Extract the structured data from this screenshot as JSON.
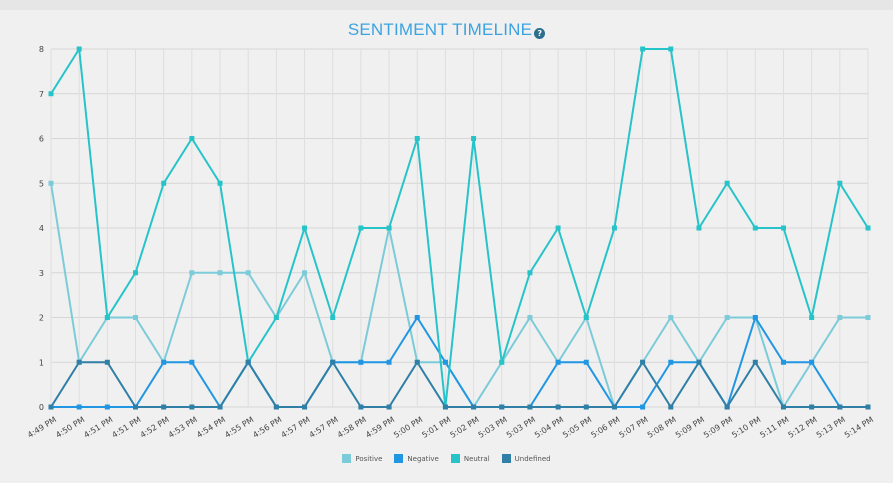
{
  "title": "SENTIMENT TIMELINE",
  "help_icon": "?",
  "chart_data": {
    "type": "line",
    "title": "SENTIMENT TIMELINE",
    "x": [
      "4:49 PM",
      "4:50 PM",
      "4:51 PM",
      "4:51 PM",
      "4:52 PM",
      "4:53 PM",
      "4:54 PM",
      "4:55 PM",
      "4:56 PM",
      "4:57 PM",
      "4:57 PM",
      "4:58 PM",
      "4:59 PM",
      "5:00 PM",
      "5:01 PM",
      "5:02 PM",
      "5:03 PM",
      "5:03 PM",
      "5:04 PM",
      "5:05 PM",
      "5:06 PM",
      "5:07 PM",
      "5:08 PM",
      "5:09 PM",
      "5:09 PM",
      "5:10 PM",
      "5:11 PM",
      "5:12 PM",
      "5:13 PM",
      "5:14 PM"
    ],
    "ylim": [
      0,
      8
    ],
    "yticks": [
      0,
      1,
      2,
      3,
      4,
      5,
      6,
      7,
      8
    ],
    "grid": true,
    "legend_position": "bottom",
    "series": [
      {
        "name": "Positive",
        "color": "#7ccbd9",
        "values": [
          5,
          1,
          2,
          2,
          1,
          3,
          3,
          3,
          2,
          3,
          1,
          1,
          4,
          1,
          1,
          0,
          1,
          2,
          1,
          2,
          0,
          1,
          2,
          1,
          2,
          2,
          0,
          1,
          2,
          2
        ]
      },
      {
        "name": "Negative",
        "color": "#2196e3",
        "values": [
          0,
          0,
          0,
          0,
          1,
          1,
          0,
          1,
          0,
          0,
          1,
          1,
          1,
          2,
          1,
          0,
          0,
          0,
          1,
          1,
          0,
          0,
          1,
          1,
          0,
          2,
          1,
          1,
          0,
          0
        ]
      },
      {
        "name": "Neutral",
        "color": "#26c4c9",
        "values": [
          7,
          8,
          2,
          3,
          5,
          6,
          5,
          1,
          2,
          4,
          2,
          4,
          4,
          6,
          0,
          6,
          1,
          3,
          4,
          2,
          4,
          8,
          8,
          4,
          5,
          4,
          4,
          2,
          5,
          4
        ]
      },
      {
        "name": "Undefined",
        "color": "#2f7fa6",
        "values": [
          0,
          1,
          1,
          0,
          0,
          0,
          0,
          1,
          0,
          0,
          1,
          0,
          0,
          1,
          0,
          0,
          0,
          0,
          0,
          0,
          0,
          1,
          0,
          1,
          0,
          1,
          0,
          0,
          0,
          0
        ]
      }
    ]
  }
}
